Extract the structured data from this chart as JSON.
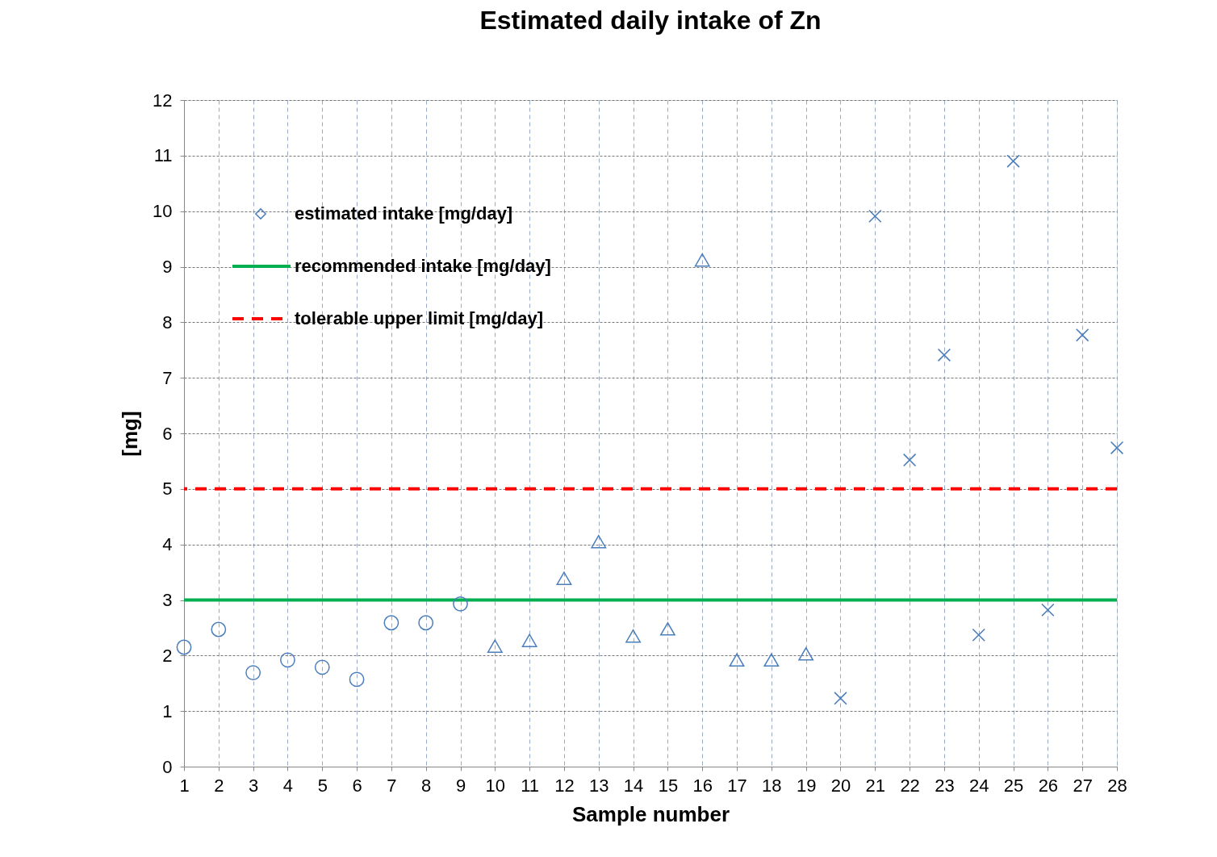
{
  "chart_data": {
    "type": "scatter",
    "title": "Estimated daily intake of Zn",
    "xlabel": "Sample number",
    "ylabel": "[mg]",
    "xlim": [
      1,
      28
    ],
    "xticks": [
      1,
      2,
      3,
      4,
      5,
      6,
      7,
      8,
      9,
      10,
      11,
      12,
      13,
      14,
      15,
      16,
      17,
      18,
      19,
      20,
      21,
      22,
      23,
      24,
      25,
      26,
      27,
      28
    ],
    "ylim": [
      0,
      12
    ],
    "yticks": [
      0,
      1,
      2,
      3,
      4,
      5,
      6,
      7,
      8,
      9,
      10,
      11,
      12
    ],
    "grid": true,
    "legend": "top left",
    "marker": "diamond",
    "series": [
      {
        "name": "estimated intake [mg/day]",
        "color": "#4a7ebb",
        "marker": "circle",
        "x": [
          1,
          2,
          3,
          4,
          5,
          6,
          7,
          8,
          9
        ],
        "values": [
          2.15,
          2.47,
          1.69,
          1.92,
          1.79,
          1.57,
          2.59,
          2.59,
          2.93
        ]
      },
      {
        "color": "#4a7ebb",
        "marker": "triangle",
        "x": [
          10,
          11,
          12,
          13,
          14,
          15,
          16,
          17,
          18,
          19
        ],
        "values": [
          2.17,
          2.27,
          3.39,
          4.05,
          2.35,
          2.48,
          9.12,
          1.92,
          1.92,
          2.03
        ]
      },
      {
        "color": "#4a7ebb",
        "marker": "cross",
        "x": [
          20,
          21,
          22,
          23,
          24,
          25,
          26,
          27,
          28
        ],
        "values": [
          1.23,
          9.91,
          5.52,
          7.41,
          2.37,
          10.9,
          2.82,
          7.77,
          5.74
        ]
      }
    ],
    "ref_lines": [
      {
        "axis": "y",
        "value": 3,
        "label": "recommended intake [mg/day]",
        "color": "#00b050",
        "line_style": "solid"
      },
      {
        "axis": "y",
        "value": 5,
        "label": "tolerable upper limit [mg/day]",
        "color": "#ff0000",
        "line_style": "dashed"
      }
    ]
  }
}
